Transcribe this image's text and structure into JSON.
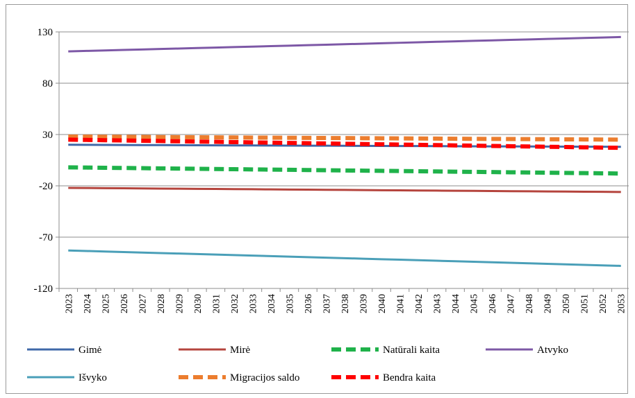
{
  "chart_data": {
    "type": "line",
    "title": "",
    "xlabel": "",
    "ylabel": "",
    "ylim": [
      -120,
      130
    ],
    "yticks": [
      130,
      80,
      30,
      -20,
      -70,
      -120
    ],
    "grid": true,
    "legend_placement": "bottom",
    "x": [
      2023,
      2024,
      2025,
      2026,
      2027,
      2028,
      2029,
      2030,
      2031,
      2032,
      2033,
      2034,
      2035,
      2036,
      2037,
      2038,
      2039,
      2040,
      2041,
      2042,
      2043,
      2044,
      2045,
      2046,
      2047,
      2048,
      2049,
      2050,
      2051,
      2052,
      2053
    ],
    "series": [
      {
        "name": "Gimė",
        "color": "#3f68a8",
        "dash": "solid",
        "start": 20,
        "end": 18
      },
      {
        "name": "Mirė",
        "color": "#b5443d",
        "dash": "solid",
        "start": -22,
        "end": -26
      },
      {
        "name": "Natūrali kaita",
        "color": "#1fb24a",
        "dash": "dashed",
        "start": -2,
        "end": -8
      },
      {
        "name": "Atvyko",
        "color": "#7d58a6",
        "dash": "solid",
        "start": 111,
        "end": 125
      },
      {
        "name": "Išvyko",
        "color": "#4a9fb8",
        "dash": "solid",
        "start": -83,
        "end": -98
      },
      {
        "name": "Migracijos saldo",
        "color": "#ec7d2e",
        "dash": "dashed",
        "start": 28,
        "end": 25
      },
      {
        "name": "Bendra kaita",
        "color": "#ff0000",
        "dash": "dashed",
        "start": 25,
        "end": 17
      }
    ]
  }
}
